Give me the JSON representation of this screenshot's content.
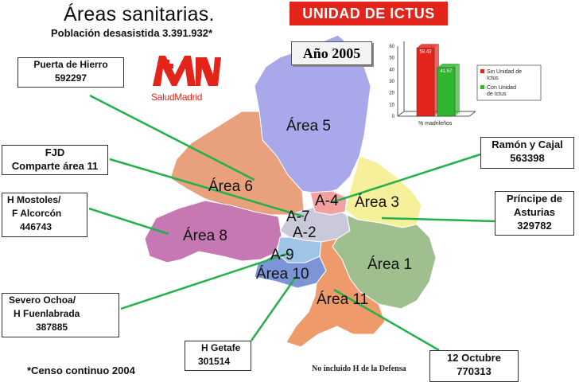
{
  "title": "Áreas sanitarias.",
  "subtitle": "Población desasistida   3.391.932*",
  "unidad_banner": "UNIDAD DE ICTUS",
  "year_label": "Año 2005",
  "logo": {
    "text": "SaludMadrid",
    "icon": "madrid-logo-icon",
    "color": "#e3241b"
  },
  "footnote": "*Censo continuo 2004",
  "defense_note": "No incluido H de la Defensa",
  "hospitals": {
    "puerta_hierro": {
      "name": "Puerta de Hierro",
      "value": "592297"
    },
    "fjd": {
      "name": "FJD",
      "note": "Comparte área 11"
    },
    "mostoles": {
      "line1": "H Mostoles/",
      "line2": "F Alcorcón",
      "value": "446743"
    },
    "severo": {
      "line1": "Severo Ochoa/",
      "line2": "H Fuenlabrada",
      "value": "387885"
    },
    "getafe": {
      "name": "H Getafe",
      "value": "301514"
    },
    "octubre": {
      "name": "12 Octubre",
      "value": "770313"
    },
    "ramon": {
      "name": "Ramón y Cajal",
      "value": "563398"
    },
    "principe": {
      "line1": "Príncipe de",
      "line2": "Asturias",
      "value": "329782"
    }
  },
  "areas": {
    "a1": "Área 1",
    "a2": "A-2",
    "a3": "Área 3",
    "a4": "A-4",
    "a5": "Área 5",
    "a6": "Área 6",
    "a7": "A-7",
    "a8": "Área 8",
    "a9": "A-9",
    "a10": "Área 10",
    "a11": "Área 11"
  },
  "area_colors": {
    "a1": "#9fbf8f",
    "a3": "#f6f09a",
    "a4": "#f2a0a0",
    "a5": "#a8a8ea",
    "a6": "#e9a07c",
    "a8": "#c578b2",
    "a9": "#9ec5e8",
    "a10": "#7d95d6",
    "a11": "#ef9a6a",
    "center": "#c9c9d9"
  },
  "chart_data": {
    "type": "bar",
    "categories": [
      "%  madrileños"
    ],
    "series": [
      {
        "name": "Sin Unidad de Ictus",
        "values": [
          58.43
        ],
        "color": "#e3241b"
      },
      {
        "name": "Con Unidad de Ictus",
        "values": [
          41.57
        ],
        "color": "#2fb52f"
      }
    ],
    "data_labels": [
      "58.43",
      "41.57"
    ],
    "yticks": [
      "0",
      "10",
      "20",
      "30",
      "40",
      "50",
      "60"
    ],
    "ylim": [
      0,
      60
    ],
    "legend": [
      "Sin Unidad de",
      "Ictus",
      "Con Unidad",
      "de Ictus"
    ],
    "legend_position": "right"
  }
}
